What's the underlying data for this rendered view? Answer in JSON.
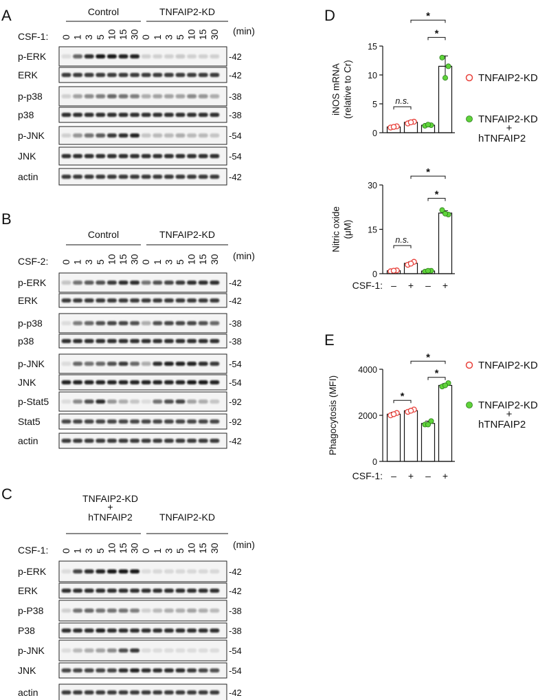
{
  "panels": {
    "A": {
      "letter": "A",
      "groups": [
        "Control",
        "TNFAIP2-KD"
      ],
      "treatment": "CSF-1:",
      "timepoints": [
        "0",
        "1",
        "3",
        "5",
        "10",
        "15",
        "30",
        "0",
        "1",
        "3",
        "5",
        "10",
        "15",
        "30"
      ],
      "unit": "(min)",
      "blots": [
        {
          "label": "p-ERK",
          "mw": "-42"
        },
        {
          "label": "ERK",
          "mw": "-42"
        },
        {
          "label": "p-p38",
          "mw": "-38"
        },
        {
          "label": "p38",
          "mw": "-38"
        },
        {
          "label": "p-JNK",
          "mw": "-54"
        },
        {
          "label": "JNK",
          "mw": "-54"
        },
        {
          "label": "actin",
          "mw": "-42"
        }
      ]
    },
    "B": {
      "letter": "B",
      "groups": [
        "Control",
        "TNFAIP2-KD"
      ],
      "treatment": "CSF-2:",
      "timepoints": [
        "0",
        "1",
        "3",
        "5",
        "10",
        "15",
        "30",
        "0",
        "1",
        "3",
        "5",
        "10",
        "15",
        "30"
      ],
      "unit": "(min)",
      "blots": [
        {
          "label": "p-ERK",
          "mw": "-42"
        },
        {
          "label": "ERK",
          "mw": "-42"
        },
        {
          "label": "p-p38",
          "mw": "-38"
        },
        {
          "label": "p38",
          "mw": "-38"
        },
        {
          "label": "p-JNK",
          "mw": "-54"
        },
        {
          "label": "JNK",
          "mw": "-54"
        },
        {
          "label": "p-Stat5",
          "mw": "-92"
        },
        {
          "label": "Stat5",
          "mw": "-92"
        },
        {
          "label": "actin",
          "mw": "-42"
        }
      ]
    },
    "C": {
      "letter": "C",
      "groups": [
        "TNFAIP2-KD",
        "+",
        "hTNFAIP2",
        "TNFAIP2-KD"
      ],
      "treatment": "CSF-1:",
      "timepoints": [
        "0",
        "1",
        "3",
        "5",
        "10",
        "15",
        "30",
        "0",
        "1",
        "3",
        "5",
        "10",
        "15",
        "30"
      ],
      "unit": "(min)",
      "blots": [
        {
          "label": "p-ERK",
          "mw": "-42"
        },
        {
          "label": "ERK",
          "mw": "-42"
        },
        {
          "label": "p-P38",
          "mw": "-38"
        },
        {
          "label": "P38",
          "mw": "-38"
        },
        {
          "label": "p-JNK",
          "mw": "-54"
        },
        {
          "label": "JNK",
          "mw": "-54"
        },
        {
          "label": "actin",
          "mw": "-42"
        }
      ]
    },
    "D": {
      "letter": "D"
    },
    "E": {
      "letter": "E"
    }
  },
  "legend": {
    "kd": "TNFAIP2-KD",
    "rescue_line1": "TNFAIP2-KD",
    "rescue_plus": "+",
    "rescue_line2": "hTNFAIP2"
  },
  "x_axis": {
    "label": "CSF-1:",
    "ticks": [
      "–",
      "+",
      "–",
      "+"
    ]
  },
  "colors": {
    "kd": "#e8403a",
    "rescue": "#5fd33a",
    "bar": "#ffffff",
    "axis": "#111111"
  },
  "chart_data": [
    {
      "type": "bar",
      "panel": "D (top)",
      "ylabel": "iNOS mRNA (relative to Cr)",
      "ylabel_lines": [
        "iNOS mRNA",
        "(relative to Cr)"
      ],
      "ylim": [
        0,
        15
      ],
      "yticks": [
        0,
        5,
        10,
        15
      ],
      "categories": [
        "TNFAIP2-KD CSF-1 –",
        "TNFAIP2-KD CSF-1 +",
        "TNFAIP2-KD + hTNFAIP2 CSF-1 –",
        "TNFAIP2-KD + hTNFAIP2 CSF-1 +"
      ],
      "values": [
        1.0,
        1.8,
        1.3,
        11.5
      ],
      "errors": [
        0.2,
        0.3,
        0.2,
        1.8
      ],
      "points": [
        [
          0.9,
          1.1,
          1.0
        ],
        [
          1.6,
          1.9,
          1.8
        ],
        [
          1.2,
          1.3,
          1.4
        ],
        [
          13.0,
          11.5,
          9.5
        ]
      ],
      "group": [
        "kd",
        "kd",
        "rescue",
        "rescue"
      ],
      "comparisons": [
        {
          "from": 0,
          "to": 1,
          "label": "n.s.",
          "y": 4.5
        },
        {
          "from": 2,
          "to": 3,
          "label": "*",
          "y": 16.5
        },
        {
          "from": 1,
          "to": 3,
          "label": "*",
          "y": 19.5
        }
      ]
    },
    {
      "type": "bar",
      "panel": "D (bottom)",
      "ylabel": "Nitric oxide (μM)",
      "ylabel_lines": [
        "Nitric oxide",
        "(μM)"
      ],
      "ylim": [
        0,
        30
      ],
      "yticks": [
        0,
        15,
        30
      ],
      "categories": [
        "TNFAIP2-KD CSF-1 –",
        "TNFAIP2-KD CSF-1 +",
        "TNFAIP2-KD + hTNFAIP2 CSF-1 –",
        "TNFAIP2-KD + hTNFAIP2 CSF-1 +"
      ],
      "values": [
        1.0,
        3.5,
        0.9,
        20.5
      ],
      "errors": [
        0.2,
        0.5,
        0.2,
        0.8
      ],
      "points": [
        [
          0.8,
          1.1,
          1.0
        ],
        [
          3.0,
          4.0,
          3.4
        ],
        [
          0.7,
          1.0,
          1.0
        ],
        [
          21.5,
          20.0,
          20.3
        ]
      ],
      "group": [
        "kd",
        "kd",
        "rescue",
        "rescue"
      ],
      "comparisons": [
        {
          "from": 0,
          "to": 1,
          "label": "n.s.",
          "y": 9.5
        },
        {
          "from": 2,
          "to": 3,
          "label": "*",
          "y": 25.5
        },
        {
          "from": 1,
          "to": 3,
          "label": "*",
          "y": 33
        }
      ]
    },
    {
      "type": "bar",
      "panel": "E",
      "ylabel": "Phagocytosis (MFI)",
      "ylabel_lines": [
        "Phagocytosis (MFI)"
      ],
      "ylim": [
        0,
        4000
      ],
      "yticks": [
        0,
        2000,
        4000
      ],
      "categories": [
        "TNFAIP2-KD CSF-1 –",
        "TNFAIP2-KD CSF-1 +",
        "TNFAIP2-KD + hTNFAIP2 CSF-1 –",
        "TNFAIP2-KD + hTNFAIP2 CSF-1 +"
      ],
      "values": [
        2050,
        2200,
        1650,
        3300
      ],
      "errors": [
        80,
        60,
        100,
        80
      ],
      "points": [
        [
          2000,
          2100,
          2050
        ],
        [
          2150,
          2250,
          2200
        ],
        [
          1600,
          1750,
          1600
        ],
        [
          3250,
          3400,
          3300
        ]
      ],
      "group": [
        "kd",
        "kd",
        "rescue",
        "rescue"
      ],
      "comparisons": [
        {
          "from": 0,
          "to": 1,
          "label": "*",
          "y": 2650
        },
        {
          "from": 2,
          "to": 3,
          "label": "*",
          "y": 3650
        },
        {
          "from": 1,
          "to": 3,
          "label": "*",
          "y": 4350
        }
      ]
    }
  ]
}
